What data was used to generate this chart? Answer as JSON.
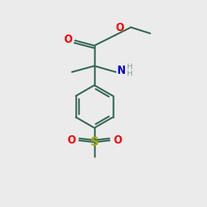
{
  "bg_color": "#ebebeb",
  "bond_color": "#3a6b5a",
  "bond_width": 1.8,
  "O_color": "#ff0000",
  "N_color": "#0000cc",
  "S_color": "#aaaa00",
  "H_color": "#7a9a9a",
  "figsize": [
    3.0,
    3.0
  ],
  "dpi": 100,
  "xlim": [
    0,
    10
  ],
  "ylim": [
    0,
    10
  ]
}
